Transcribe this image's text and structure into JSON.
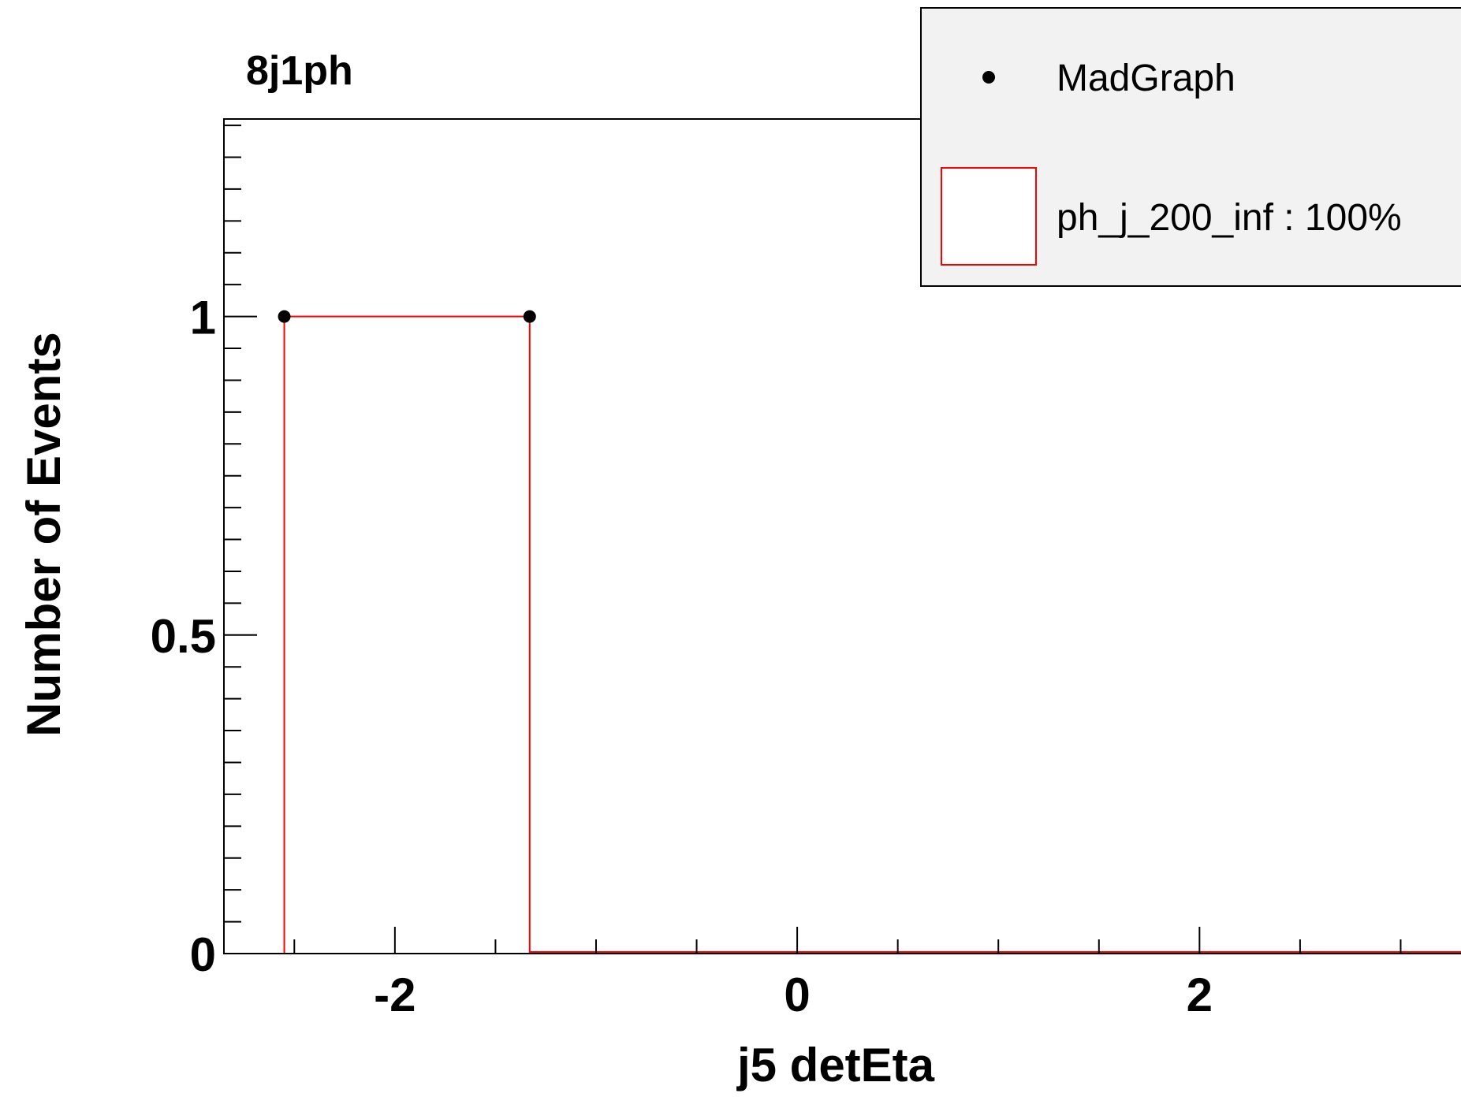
{
  "chart_data": {
    "type": "bar",
    "title": "8j1ph",
    "xlabel": "j5 detEta",
    "ylabel": "Number of Events",
    "xlim": [
      -2.85,
      3.3
    ],
    "ylim": [
      0,
      1.31
    ],
    "x_ticks": [
      -2,
      0,
      2
    ],
    "x_tick_labels": [
      "-2",
      "0",
      "2"
    ],
    "y_ticks": [
      0,
      0.5,
      1
    ],
    "y_tick_labels": [
      "0",
      "0.5",
      "1"
    ],
    "grid": false,
    "legend_position": "top-right",
    "legend": [
      "MadGraph",
      "ph_j_200_inf : 100%"
    ],
    "series": [
      {
        "name": "MadGraph",
        "kind": "points",
        "color": "#000000",
        "x": [
          -2.55,
          -1.33
        ],
        "y": [
          1,
          1
        ]
      },
      {
        "name": "ph_j_200_inf : 100%",
        "kind": "histogram",
        "color": "#ff0000",
        "bin_edges": [
          -2.55,
          -1.33,
          2.0,
          3.3
        ],
        "values": [
          1,
          0,
          0
        ]
      }
    ]
  }
}
